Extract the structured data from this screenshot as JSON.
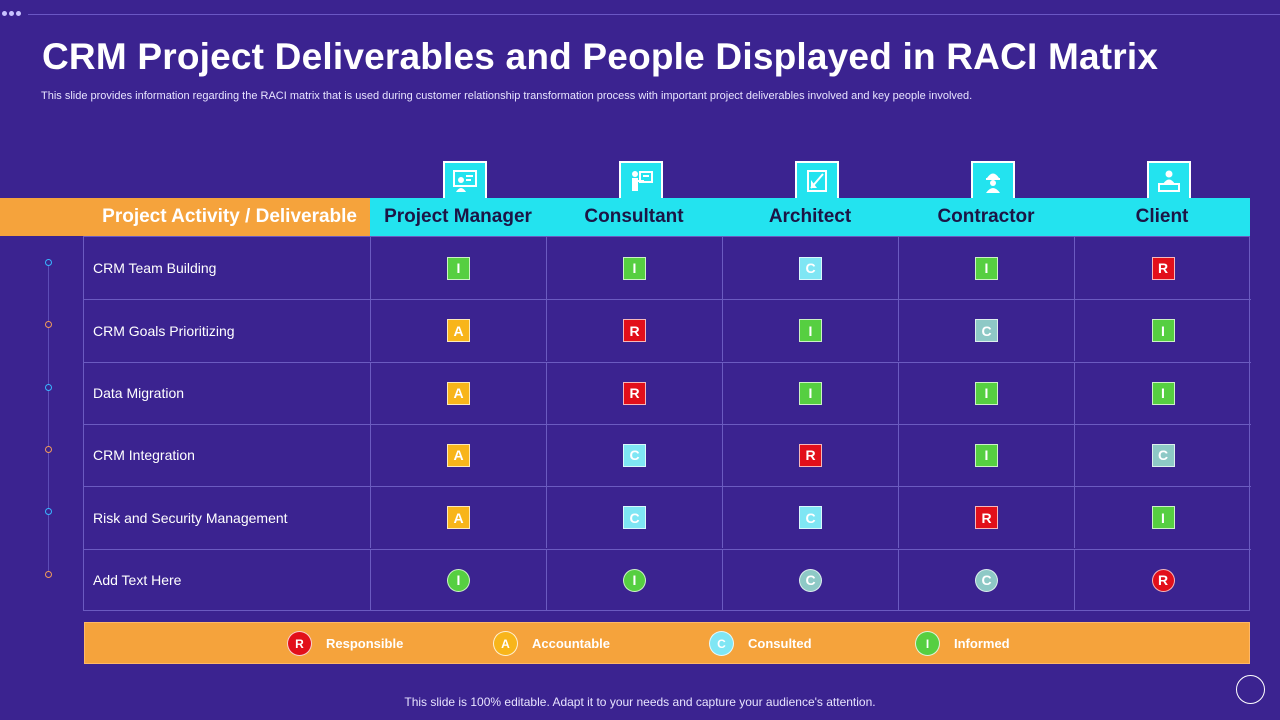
{
  "title": "CRM Project Deliverables and People Displayed in RACI Matrix",
  "subtitle": "This slide provides information regarding the RACI matrix that is used during customer relationship transformation process with important project deliverables involved and key people involved.",
  "table": {
    "first_header": "Project Activity / Deliverable",
    "roles": [
      {
        "label": "Project Manager",
        "icon": "project-manager-icon"
      },
      {
        "label": "Consultant",
        "icon": "consultant-icon"
      },
      {
        "label": "Architect",
        "icon": "architect-icon"
      },
      {
        "label": "Contractor",
        "icon": "contractor-icon"
      },
      {
        "label": "Client",
        "icon": "client-icon"
      }
    ],
    "rows": [
      {
        "activity": "CRM Team Building",
        "values": [
          "I",
          "I",
          "C",
          "I",
          "R"
        ]
      },
      {
        "activity": "CRM Goals Prioritizing",
        "values": [
          "A",
          "R",
          "I",
          "C",
          "I"
        ]
      },
      {
        "activity": "Data Migration",
        "values": [
          "A",
          "R",
          "I",
          "I",
          "I"
        ]
      },
      {
        "activity": "CRM Integration",
        "values": [
          "A",
          "C",
          "R",
          "I",
          "C"
        ]
      },
      {
        "activity": "Risk and Security Management",
        "values": [
          "A",
          "C",
          "C",
          "R",
          "I"
        ]
      },
      {
        "activity": "Add Text Here",
        "values": [
          "I",
          "I",
          "C",
          "C",
          "R"
        ]
      }
    ]
  },
  "legend": [
    {
      "letter": "R",
      "label": "Responsible",
      "color": "#e20f1a"
    },
    {
      "letter": "A",
      "label": "Accountable",
      "color": "#f8b51a"
    },
    {
      "letter": "C",
      "label": "Consulted",
      "color": "#7fe6f4"
    },
    {
      "letter": "I",
      "label": "Informed",
      "color": "#56cf41"
    }
  ],
  "footer": "This slide is 100% editable. Adapt it to your needs and capture your audience's attention."
}
